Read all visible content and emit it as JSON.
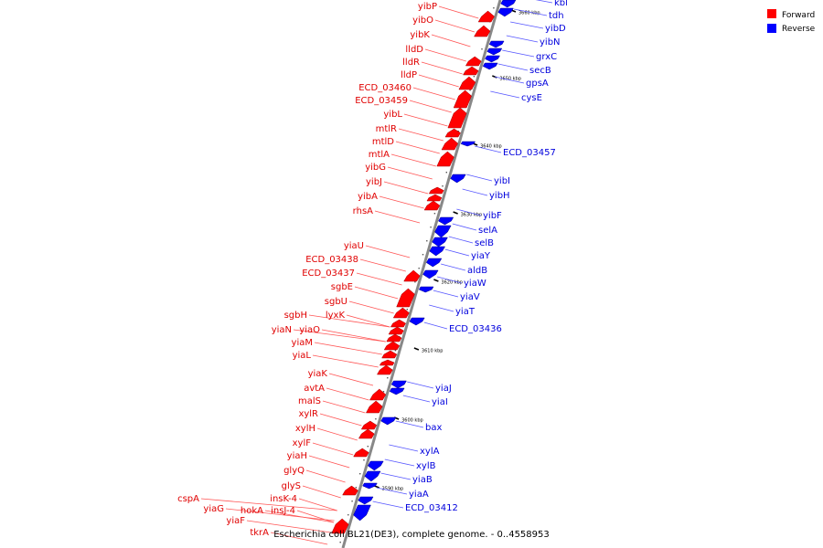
{
  "caption": "Escherichia coli BL21(DE3), complete genome. - 0..4558953",
  "legend": [
    {
      "label": "Forward",
      "color": "#ff0000"
    },
    {
      "label": "Reverse",
      "color": "#0000ff"
    }
  ],
  "colors": {
    "forward": "#ff0000",
    "reverse": "#0000ff",
    "backbone": "#888888",
    "forward_text": "#e00000",
    "reverse_text": "#0000dd"
  },
  "scale_marks": [
    "3660 kbp",
    "3650 kbp",
    "3640 kbp",
    "3630 kbp",
    "3620 kbp",
    "3610 kbp",
    "3600 kbp",
    "3590 kbp"
  ],
  "forward_genes": [
    "yibP",
    "yibO",
    "yibK",
    "lldD",
    "lldR",
    "lldP",
    "ECD_03460",
    "ECD_03459",
    "yibL",
    "mtlR",
    "mtlD",
    "mtlA",
    "yibG",
    "yibJ",
    "yibA",
    "rhsA",
    "yiaU",
    "ECD_03438",
    "ECD_03437",
    "sgbE",
    "sgbU",
    "lyxK",
    "sgbH",
    "yiaN",
    "yiaO",
    "yiaM",
    "yiaL",
    "yiaK",
    "avtA",
    "malS",
    "xylR",
    "xylH",
    "xylF",
    "yiaH",
    "glyQ",
    "glyS",
    "insK-4",
    "cspA",
    "hokA",
    "insJ-4",
    "yiaG",
    "yiaF",
    "tkrA"
  ],
  "reverse_genes": [
    "kbl",
    "tdh",
    "yibD",
    "yibN",
    "grxC",
    "secB",
    "gpsA",
    "cysE",
    "ECD_03457",
    "yibI",
    "yibH",
    "yibF",
    "selA",
    "selB",
    "yiaY",
    "aldB",
    "yiaW",
    "yiaV",
    "yiaT",
    "ECD_03436",
    "yiaJ",
    "yiaI",
    "bax",
    "xylA",
    "xylB",
    "yiaB",
    "yiaA",
    "ECD_03412"
  ]
}
